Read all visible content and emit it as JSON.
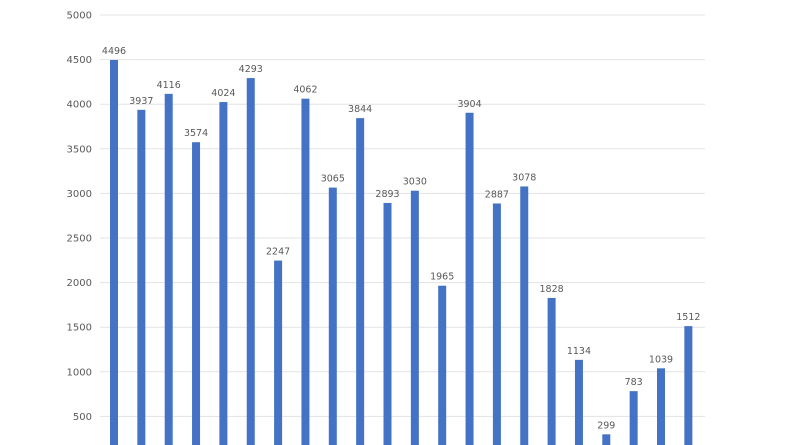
{
  "chart_data": {
    "type": "bar",
    "title": "",
    "xlabel": "",
    "ylabel": "",
    "ylim": [
      0,
      5000
    ],
    "yticks": [
      500,
      1000,
      1500,
      2000,
      2500,
      3000,
      3500,
      4000,
      4500,
      5000
    ],
    "grid": true,
    "bar_color": "#4472C4",
    "values": [
      4496,
      3937,
      4116,
      3574,
      4024,
      4293,
      2247,
      4062,
      3065,
      3844,
      2893,
      3030,
      1965,
      3904,
      2887,
      3078,
      1828,
      1134,
      299,
      783,
      1039,
      1512
    ]
  }
}
